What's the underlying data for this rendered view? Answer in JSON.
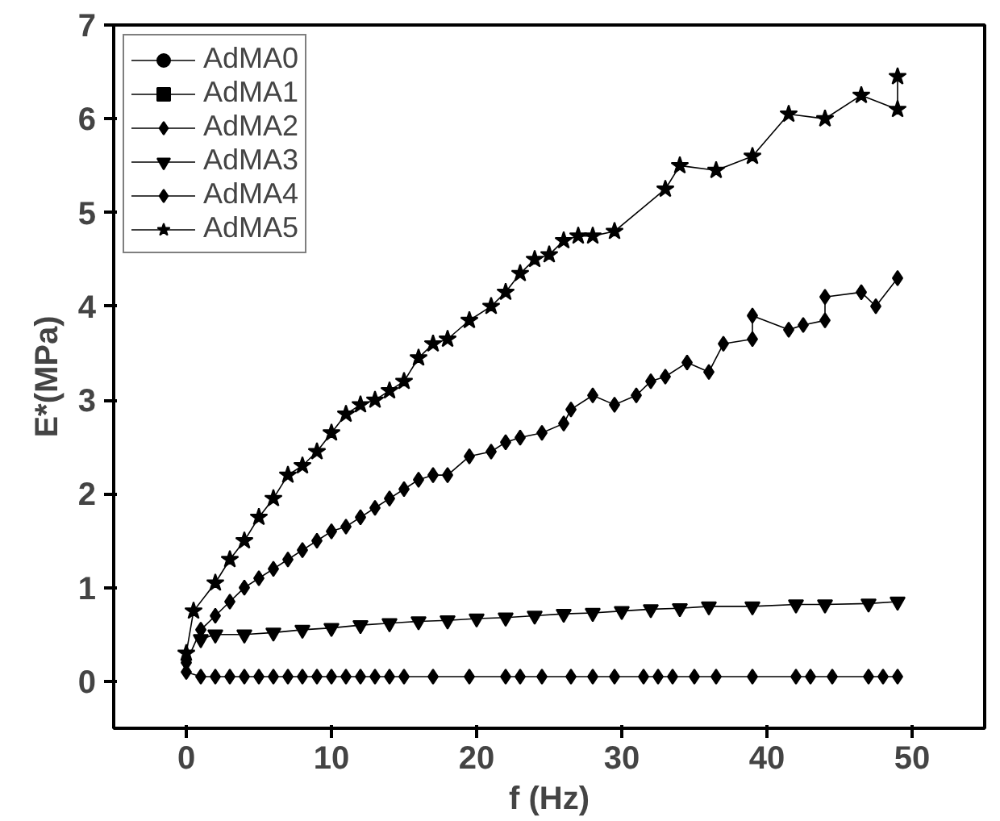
{
  "chart_data": {
    "type": "line",
    "xlabel": "f (Hz)",
    "ylabel": "E*(MPa)",
    "xlim": [
      -5,
      55
    ],
    "ylim": [
      -0.5,
      7
    ],
    "xticks": [
      0,
      10,
      20,
      30,
      40,
      50
    ],
    "yticks": [
      0,
      1,
      2,
      3,
      4,
      5,
      6,
      7
    ],
    "grid": false,
    "legend": "top left",
    "line_style": "solid",
    "series": [
      {
        "name": "AdMA0",
        "color": "#000000",
        "marker": "circle",
        "values": [
          null
        ]
      },
      {
        "name": "AdMA1",
        "color": "#000000",
        "marker": "square",
        "values": [
          null
        ]
      },
      {
        "name": "AdMA2",
        "color": "#000000",
        "marker": "diamond",
        "x": [
          0,
          1,
          2,
          3,
          4,
          5,
          6,
          7,
          8,
          9,
          10,
          11,
          12,
          13,
          14,
          15,
          17,
          19.5,
          22,
          23,
          24.5,
          26.5,
          28,
          29.5,
          31.5,
          32.5,
          33.5,
          35,
          36.5,
          39,
          42,
          43,
          44.5,
          47,
          48,
          49
        ],
        "values": [
          0.1,
          0.05,
          0.05,
          0.05,
          0.05,
          0.05,
          0.05,
          0.05,
          0.05,
          0.05,
          0.05,
          0.05,
          0.05,
          0.05,
          0.05,
          0.05,
          0.05,
          0.05,
          0.05,
          0.05,
          0.05,
          0.05,
          0.05,
          0.05,
          0.05,
          0.05,
          0.05,
          0.05,
          0.05,
          0.05,
          0.05,
          0.05,
          0.05,
          0.05,
          0.05,
          0.05
        ]
      },
      {
        "name": "AdMA3",
        "color": "#000000",
        "marker": "triangle",
        "x": [
          1,
          2,
          4,
          6,
          8,
          10,
          12,
          14,
          16,
          18,
          20,
          22,
          24,
          26,
          28,
          30,
          32,
          34,
          36,
          39,
          42,
          44,
          47,
          49
        ],
        "values": [
          0.45,
          0.5,
          0.5,
          0.52,
          0.55,
          0.57,
          0.6,
          0.62,
          0.64,
          0.65,
          0.67,
          0.68,
          0.7,
          0.72,
          0.73,
          0.75,
          0.77,
          0.78,
          0.8,
          0.8,
          0.82,
          0.82,
          0.83,
          0.85
        ]
      },
      {
        "name": "AdMA4",
        "color": "#000000",
        "marker": "diamond",
        "x": [
          0,
          1,
          2,
          3,
          4,
          5,
          6,
          7,
          8,
          9,
          10,
          11,
          12,
          13,
          14,
          15,
          16,
          17,
          18,
          19.5,
          21,
          22,
          23,
          24.5,
          26,
          26.5,
          28,
          29.5,
          31,
          32,
          33,
          34.5,
          36,
          37,
          39,
          39,
          41.5,
          42.5,
          44,
          44,
          46.5,
          47.5,
          49
        ],
        "values": [
          0.2,
          0.55,
          0.7,
          0.85,
          1.0,
          1.1,
          1.2,
          1.3,
          1.4,
          1.5,
          1.6,
          1.65,
          1.75,
          1.85,
          1.95,
          2.05,
          2.15,
          2.2,
          2.2,
          2.4,
          2.45,
          2.55,
          2.6,
          2.65,
          2.75,
          2.9,
          3.05,
          2.95,
          3.05,
          3.2,
          3.25,
          3.4,
          3.3,
          3.6,
          3.65,
          3.9,
          3.75,
          3.8,
          3.85,
          4.1,
          4.15,
          4.0,
          4.3
        ]
      },
      {
        "name": "AdMA5",
        "color": "#000000",
        "marker": "star",
        "x": [
          0,
          0.5,
          2,
          3,
          4,
          5,
          6,
          7,
          8,
          9,
          10,
          11,
          12,
          13,
          14,
          15,
          16,
          17,
          18,
          19.5,
          21,
          22,
          23,
          24,
          25,
          26,
          27,
          28,
          29.5,
          33,
          34,
          36.5,
          39,
          41.5,
          44,
          46.5,
          49,
          49
        ],
        "values": [
          0.3,
          0.75,
          1.05,
          1.3,
          1.5,
          1.75,
          1.95,
          2.2,
          2.3,
          2.45,
          2.65,
          2.85,
          2.95,
          3.0,
          3.1,
          3.2,
          3.45,
          3.6,
          3.65,
          3.85,
          4.0,
          4.15,
          4.35,
          4.5,
          4.55,
          4.7,
          4.75,
          4.75,
          4.8,
          5.25,
          5.5,
          5.45,
          5.6,
          6.05,
          6.0,
          6.25,
          6.1,
          6.45
        ]
      }
    ]
  }
}
